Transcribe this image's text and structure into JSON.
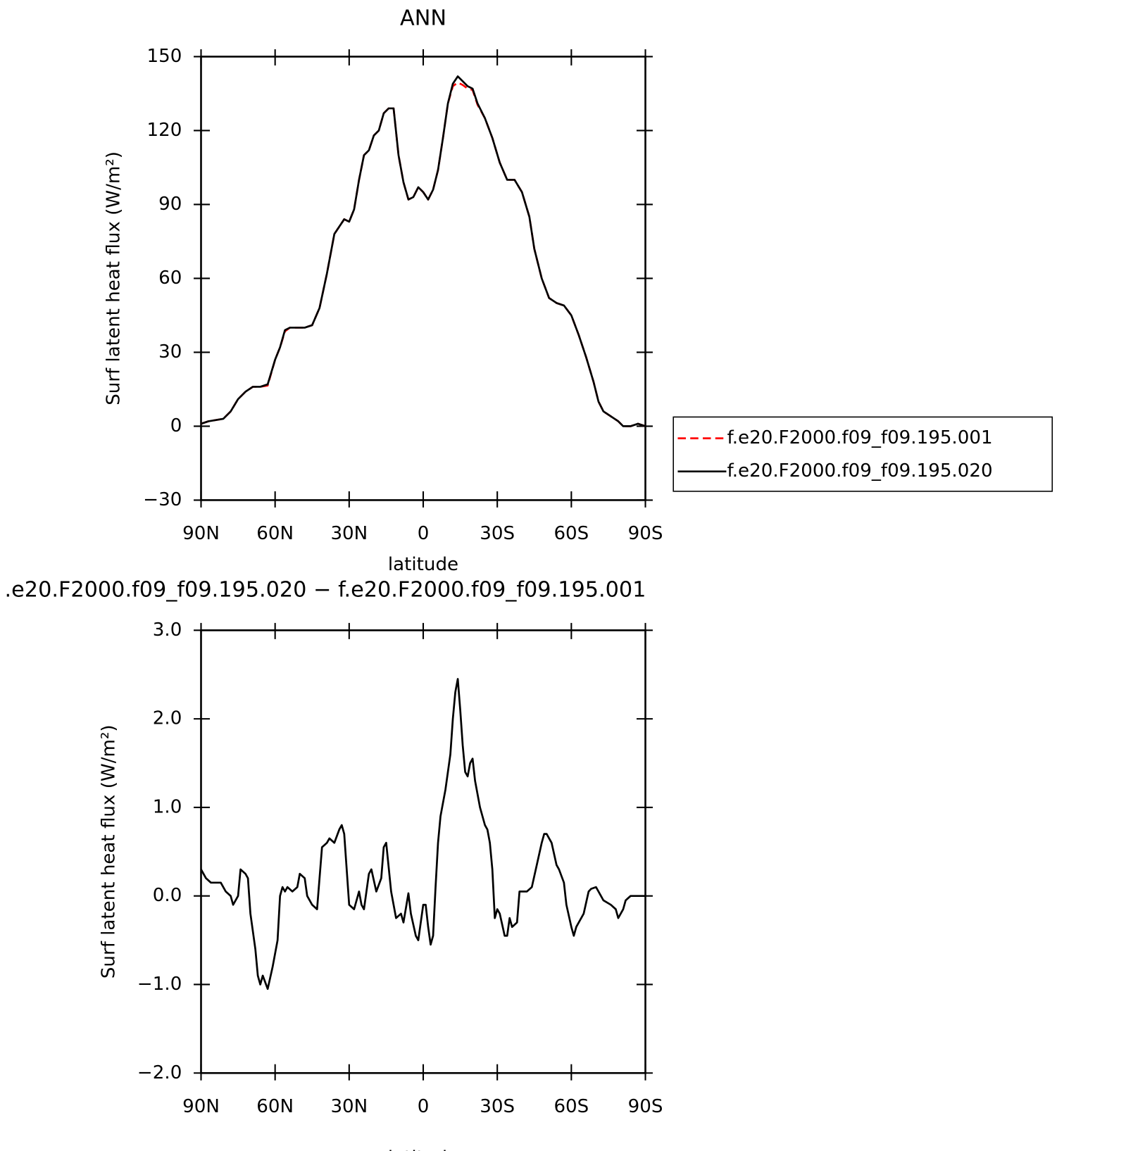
{
  "chart_data": [
    {
      "type": "line",
      "title": "ANN",
      "xlabel": "latitude",
      "ylabel": "Surf latent heat flux (W/m²)",
      "x": [
        90,
        87,
        84,
        81,
        78,
        75,
        72,
        69,
        66,
        63,
        60,
        58,
        56,
        54,
        51,
        48,
        45,
        42,
        39,
        36,
        34,
        32,
        30,
        28,
        26,
        24,
        22,
        20,
        18,
        16,
        14,
        12,
        10,
        8,
        6,
        4,
        2,
        0,
        -2,
        -4,
        -6,
        -8,
        -10,
        -12,
        -14,
        -16,
        -18,
        -20,
        -22,
        -25,
        -28,
        -31,
        -34,
        -37,
        -40,
        -43,
        -45,
        -48,
        -51,
        -54,
        -57,
        -60,
        -63,
        -66,
        -69,
        -71,
        -73,
        -76,
        -79,
        -81,
        -84,
        -87,
        -90
      ],
      "series": [
        {
          "name": "f.e20.F2000.f09_f09.195.001",
          "color": "#ff0000",
          "dash": true,
          "values": [
            1,
            2,
            2.5,
            3,
            6,
            11,
            14,
            16,
            16,
            16.5,
            27,
            32,
            38.5,
            40,
            40,
            40,
            41,
            48,
            62,
            78,
            81,
            84,
            83,
            88,
            100,
            110,
            112,
            118,
            120,
            127,
            129,
            129,
            110,
            99,
            92,
            93,
            97,
            95,
            92,
            96,
            104,
            117,
            131,
            138,
            139.5,
            138.5,
            137,
            136.5,
            130.5,
            125,
            117,
            107,
            100,
            100,
            95,
            85,
            72,
            60,
            52,
            50,
            49,
            45,
            37,
            28,
            18,
            10,
            6,
            4,
            2,
            0,
            0,
            1,
            0
          ]
        },
        {
          "name": "f.e20.F2000.f09_f09.195.020",
          "color": "#000000",
          "dash": false,
          "values": [
            1,
            2,
            2.5,
            3,
            6,
            11,
            14,
            16,
            16,
            17,
            27,
            32,
            39,
            40,
            40,
            40,
            41,
            48,
            62,
            78,
            81,
            84,
            83,
            88,
            100,
            110,
            112,
            118,
            120,
            127,
            129,
            129,
            110,
            99,
            92,
            93,
            97,
            95,
            92,
            96,
            104,
            117,
            131,
            139,
            142,
            140,
            138,
            137,
            131,
            125,
            117,
            107,
            100,
            100,
            95,
            85,
            72,
            60,
            52,
            50,
            49,
            45,
            37,
            28,
            18,
            10,
            6,
            4,
            2,
            0,
            0,
            1,
            0
          ]
        }
      ],
      "xlim": [
        90,
        -90
      ],
      "xticks": [
        {
          "value": 90,
          "label": "90N"
        },
        {
          "value": 60,
          "label": "60N"
        },
        {
          "value": 30,
          "label": "30N"
        },
        0,
        {
          "value": -30,
          "label": "30S"
        },
        {
          "value": -60,
          "label": "60S"
        },
        {
          "value": -90,
          "label": "90S"
        }
      ],
      "ylim": [
        -30,
        150
      ],
      "yticks": [
        {
          "value": -30,
          "label": "−30"
        },
        0,
        30,
        60,
        90,
        120,
        150
      ],
      "legend": "right"
    },
    {
      "type": "line",
      "title": ".e20.F2000.f09_f09.195.020 − f.e20.F2000.f09_f09.195.001",
      "xlabel": "latitude",
      "ylabel": "Surf latent heat flux (W/m²)",
      "x": [
        90,
        88,
        86,
        84,
        82,
        80,
        78,
        77,
        75,
        74,
        72,
        71,
        70,
        68,
        67,
        66,
        65,
        63,
        61,
        59,
        58,
        57,
        56,
        55,
        53,
        51,
        50,
        48,
        47,
        45,
        43,
        41,
        39,
        38,
        36,
        34,
        33,
        32,
        30,
        28,
        26,
        25,
        24,
        22,
        21,
        19,
        17,
        16,
        15,
        13,
        11,
        9,
        8,
        6,
        5,
        3,
        2,
        0,
        -1,
        -2,
        -3,
        -4,
        -5,
        -6,
        -7,
        -9,
        -11,
        -12,
        -13,
        -14,
        -15,
        -16,
        -17,
        -18,
        -19,
        -20,
        -21,
        -23,
        -25,
        -26,
        -27,
        -28,
        -29,
        -30,
        -31,
        -33,
        -34,
        -35,
        -36,
        -38,
        -39,
        -40,
        -42,
        -44,
        -46,
        -48,
        -49,
        -50,
        -51,
        -52,
        -54,
        -55,
        -57,
        -58,
        -60,
        -61,
        -62,
        -64,
        -65,
        -67,
        -68,
        -70,
        -71,
        -73,
        -76,
        -78,
        -79,
        -81,
        -82,
        -84,
        -90
      ],
      "series": [
        {
          "color": "#000000",
          "dash": false,
          "values": [
            0.3,
            0.2,
            0.15,
            0.15,
            0.15,
            0.05,
            0,
            -0.1,
            0,
            0.3,
            0.25,
            0.2,
            -0.2,
            -0.6,
            -0.9,
            -1,
            -0.9,
            -1.05,
            -0.8,
            -0.5,
            0,
            0.1,
            0.05,
            0.1,
            0.05,
            0.1,
            0.25,
            0.2,
            0,
            -0.1,
            -0.15,
            0.55,
            0.6,
            0.65,
            0.6,
            0.75,
            0.8,
            0.7,
            -0.1,
            -0.15,
            0.05,
            -0.1,
            -0.15,
            0.25,
            0.3,
            0.05,
            0.2,
            0.55,
            0.6,
            0.05,
            -0.25,
            -0.2,
            -0.3,
            0.03,
            -0.2,
            -0.45,
            -0.5,
            -0.1,
            -0.1,
            -0.35,
            -0.55,
            -0.45,
            0.1,
            0.6,
            0.9,
            1.2,
            1.6,
            2,
            2.3,
            2.45,
            2.1,
            1.7,
            1.4,
            1.35,
            1.5,
            1.55,
            1.3,
            1,
            0.8,
            0.75,
            0.6,
            0.3,
            -0.25,
            -0.15,
            -0.2,
            -0.45,
            -0.45,
            -0.25,
            -0.35,
            -0.3,
            0.05,
            0.05,
            0.05,
            0.1,
            0.35,
            0.6,
            0.7,
            0.7,
            0.65,
            0.6,
            0.35,
            0.3,
            0.15,
            -0.1,
            -0.35,
            -0.45,
            -0.35,
            -0.25,
            -0.2,
            0.05,
            0.08,
            0.1,
            0.05,
            -0.05,
            -0.1,
            -0.15,
            -0.25,
            -0.15,
            -0.05,
            0,
            0
          ]
        }
      ],
      "xlim": [
        90,
        -90
      ],
      "xticks": [
        {
          "value": 90,
          "label": "90N"
        },
        {
          "value": 60,
          "label": "60N"
        },
        {
          "value": 30,
          "label": "30N"
        },
        0,
        {
          "value": -30,
          "label": "30S"
        },
        {
          "value": -60,
          "label": "60S"
        },
        {
          "value": -90,
          "label": "90S"
        }
      ],
      "ylim": [
        -2,
        3
      ],
      "yticks": [
        {
          "value": -2,
          "label": "−2.0"
        },
        {
          "value": -1,
          "label": "−1.0"
        },
        {
          "value": 0,
          "label": "0.0"
        },
        {
          "value": 1,
          "label": "1.0"
        },
        {
          "value": 2,
          "label": "2.0"
        },
        {
          "value": 3,
          "label": "3.0"
        }
      ]
    }
  ]
}
